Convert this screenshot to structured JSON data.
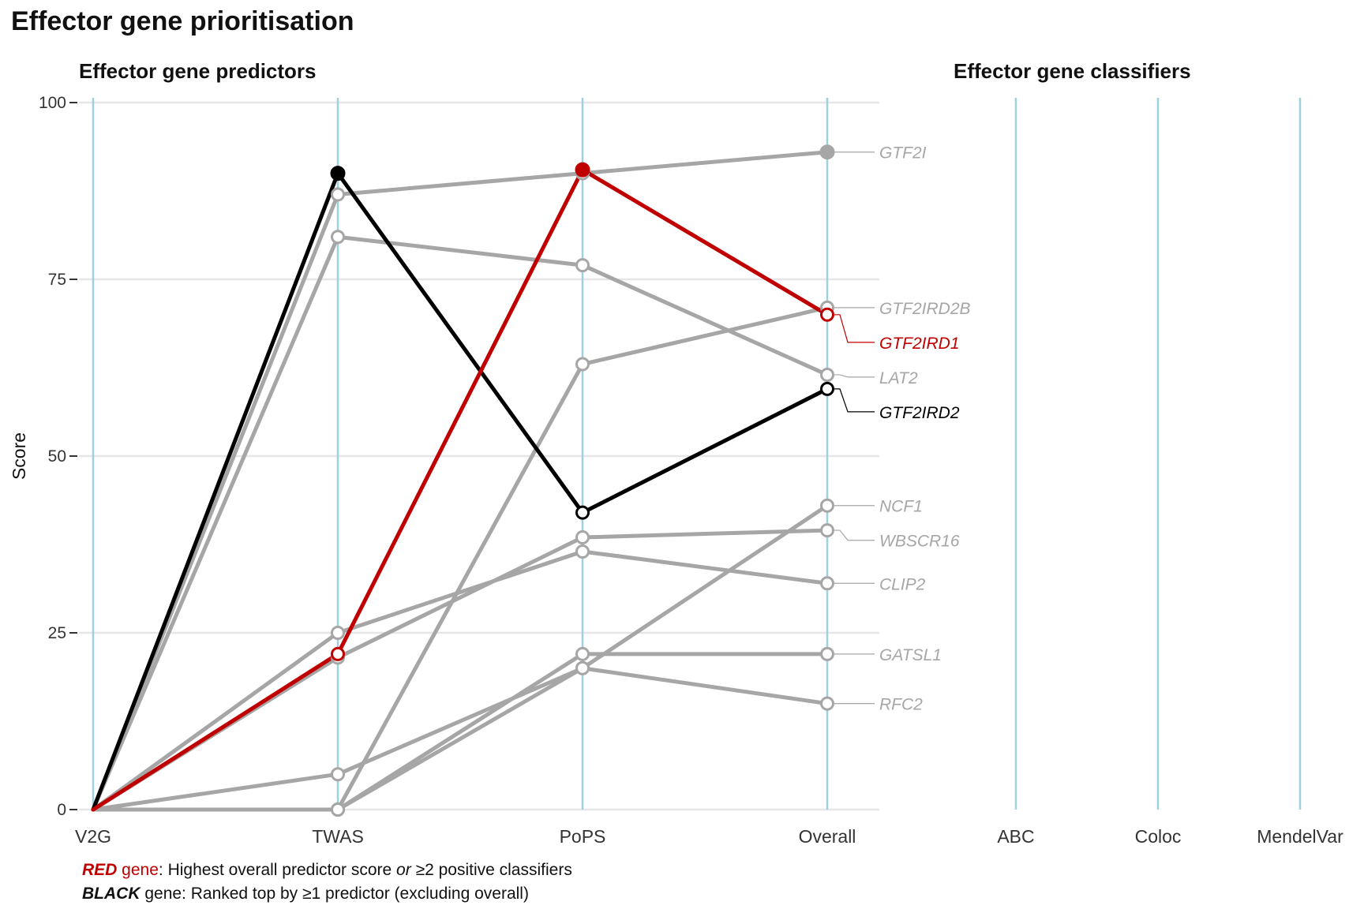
{
  "figure_title": "Effector gene prioritisation",
  "panels": {
    "predictors_title": "Effector gene predictors",
    "classifiers_title": "Effector gene classifiers"
  },
  "colors": {
    "grey": "#a6a6a6",
    "red": "#c00000",
    "black": "#000000",
    "axis_line": "#9ed0df",
    "grid": "#e6e6e6"
  },
  "footer": {
    "red_word": "RED",
    "red_gene": " gene",
    "red_desc": ": Highest overall predictor score ",
    "red_or": "or",
    "red_rest": " ≥2 positive classifiers",
    "black_word": "BLACK",
    "black_desc": " gene: Ranked top by ≥1 predictor (excluding overall)"
  },
  "chart_data": {
    "type": "line",
    "ylabel": "Score",
    "ylim": [
      0,
      100
    ],
    "yticks": [
      0,
      25,
      50,
      75,
      100
    ],
    "categories": [
      "V2G",
      "TWAS",
      "PoPS",
      "Overall"
    ],
    "classifier_categories": [
      "ABC",
      "Coloc",
      "MendelVar"
    ],
    "grid": true,
    "series": [
      {
        "name": "GTF2I",
        "color": "grey",
        "values": [
          0,
          87,
          90,
          93
        ],
        "filled": [
          false,
          false,
          false,
          true
        ]
      },
      {
        "name": "GTF2IRD2B",
        "color": "grey",
        "values": [
          0,
          0,
          63,
          71
        ],
        "filled": [
          false,
          false,
          false,
          false
        ]
      },
      {
        "name": "GTF2IRD1",
        "color": "red",
        "values": [
          0,
          22,
          90.5,
          70
        ],
        "filled": [
          false,
          false,
          true,
          false
        ]
      },
      {
        "name": "LAT2",
        "color": "grey",
        "values": [
          0,
          81,
          77,
          61.5
        ],
        "filled": [
          false,
          false,
          false,
          false
        ]
      },
      {
        "name": "GTF2IRD2",
        "color": "black",
        "values": [
          0,
          90,
          42,
          59.5
        ],
        "filled": [
          false,
          true,
          false,
          false
        ]
      },
      {
        "name": "NCF1",
        "color": "grey",
        "values": [
          0,
          0,
          20,
          43
        ],
        "filled": [
          false,
          false,
          false,
          false
        ]
      },
      {
        "name": "WBSCR16",
        "color": "grey",
        "values": [
          0,
          21.5,
          38.5,
          39.5
        ],
        "filled": [
          false,
          false,
          false,
          false
        ]
      },
      {
        "name": "CLIP2",
        "color": "grey",
        "values": [
          0,
          25,
          36.5,
          32
        ],
        "filled": [
          false,
          false,
          false,
          false
        ]
      },
      {
        "name": "GATSL1",
        "color": "grey",
        "values": [
          0,
          0,
          22,
          22
        ],
        "filled": [
          false,
          false,
          false,
          false
        ]
      },
      {
        "name": "RFC2",
        "color": "grey",
        "values": [
          0,
          5,
          20,
          15
        ],
        "filled": [
          false,
          false,
          false,
          false
        ]
      }
    ]
  }
}
